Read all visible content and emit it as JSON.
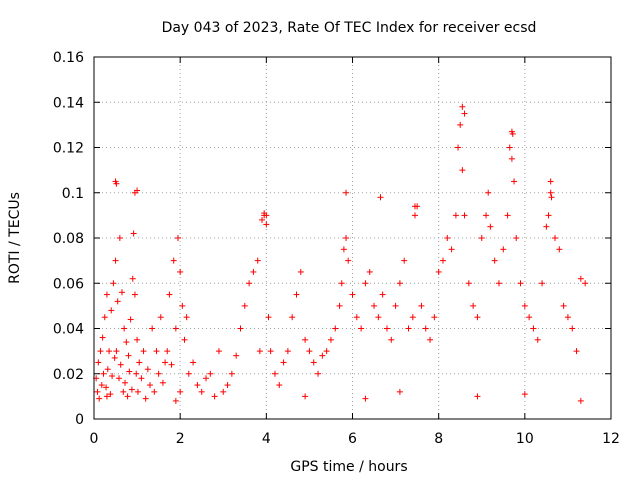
{
  "chart_data": {
    "type": "scatter",
    "title": "Day 043 of 2023, Rate Of TEC Index for receiver ecsd",
    "xlabel": "GPS time / hours",
    "ylabel": "ROTI / TECUs",
    "xlim": [
      0,
      12
    ],
    "ylim": [
      0,
      0.16
    ],
    "xticks": [
      "0",
      "2",
      "4",
      "6",
      "8",
      "10",
      "12"
    ],
    "yticks": [
      "0",
      "0.02",
      "0.04",
      "0.06",
      "0.08",
      "0.1",
      "0.12",
      "0.14",
      "0.16"
    ],
    "grid": true,
    "marker": "+",
    "color": "#ff0000",
    "series": [
      {
        "x": [
          0.05,
          0.08,
          0.1,
          0.12,
          0.15,
          0.18,
          0.2,
          0.22,
          0.25,
          0.28,
          0.3,
          0.32,
          0.35,
          0.38,
          0.4,
          0.42,
          0.45,
          0.48,
          0.5,
          0.52,
          0.55,
          0.58,
          0.6,
          0.62,
          0.65,
          0.68,
          0.7,
          0.72,
          0.75,
          0.78,
          0.8,
          0.82,
          0.85,
          0.88,
          0.9,
          0.92,
          0.95,
          0.98,
          1.0,
          1.02,
          1.05,
          1.1,
          1.15,
          1.2,
          1.25,
          1.3,
          1.35,
          1.4,
          1.45,
          1.5,
          1.55,
          1.6,
          1.65,
          1.7,
          1.75,
          1.8,
          1.85,
          1.9,
          1.95,
          2.0,
          2.05,
          2.1,
          2.15,
          2.2,
          2.3,
          2.4,
          2.5,
          2.6,
          2.7,
          2.8,
          2.9,
          3.0,
          3.1,
          3.2,
          3.3,
          3.4,
          3.5,
          3.6,
          3.7,
          3.8,
          3.85,
          3.9,
          3.95,
          4.0,
          4.05,
          4.1,
          4.2,
          4.3,
          4.4,
          4.5,
          4.6,
          4.7,
          4.8,
          4.9,
          5.0,
          5.1,
          5.2,
          5.3,
          5.4,
          5.5,
          5.6,
          5.7,
          5.75,
          5.8,
          5.85,
          5.9,
          6.0,
          6.1,
          6.2,
          6.3,
          6.4,
          6.5,
          6.6,
          6.7,
          6.8,
          6.9,
          7.0,
          7.1,
          7.2,
          7.3,
          7.4,
          7.45,
          7.5,
          7.6,
          7.7,
          7.8,
          7.9,
          8.0,
          8.1,
          8.2,
          8.3,
          8.4,
          8.45,
          8.5,
          8.55,
          8.6,
          8.7,
          8.8,
          8.9,
          9.0,
          9.1,
          9.15,
          9.2,
          9.3,
          9.4,
          9.5,
          9.6,
          9.65,
          9.7,
          9.75,
          9.8,
          9.9,
          10.0,
          10.1,
          10.2,
          10.3,
          10.4,
          10.5,
          10.55,
          10.6,
          10.7,
          10.8,
          10.9,
          11.0,
          11.1,
          11.2,
          11.3,
          11.4,
          0.5,
          0.52,
          0.95,
          1.0,
          3.95,
          4.0,
          8.55,
          8.6,
          9.7,
          9.72,
          5.85,
          6.65,
          7.45,
          10.6,
          10.62,
          0.3,
          1.9,
          2.0,
          4.9,
          6.3,
          7.1,
          8.9,
          10.0,
          11.3
        ],
        "y": [
          0.018,
          0.012,
          0.025,
          0.009,
          0.03,
          0.015,
          0.036,
          0.02,
          0.045,
          0.014,
          0.055,
          0.022,
          0.03,
          0.011,
          0.048,
          0.019,
          0.06,
          0.027,
          0.07,
          0.03,
          0.052,
          0.018,
          0.08,
          0.024,
          0.056,
          0.012,
          0.04,
          0.016,
          0.034,
          0.01,
          0.028,
          0.021,
          0.044,
          0.013,
          0.062,
          0.082,
          0.055,
          0.02,
          0.035,
          0.012,
          0.025,
          0.018,
          0.03,
          0.009,
          0.022,
          0.015,
          0.04,
          0.012,
          0.03,
          0.02,
          0.045,
          0.016,
          0.025,
          0.03,
          0.055,
          0.024,
          0.07,
          0.04,
          0.08,
          0.065,
          0.05,
          0.035,
          0.045,
          0.02,
          0.025,
          0.015,
          0.012,
          0.018,
          0.02,
          0.01,
          0.03,
          0.012,
          0.015,
          0.02,
          0.028,
          0.04,
          0.05,
          0.06,
          0.065,
          0.07,
          0.03,
          0.088,
          0.09,
          0.086,
          0.045,
          0.03,
          0.02,
          0.015,
          0.025,
          0.03,
          0.045,
          0.055,
          0.065,
          0.035,
          0.03,
          0.025,
          0.02,
          0.028,
          0.03,
          0.035,
          0.04,
          0.05,
          0.06,
          0.075,
          0.08,
          0.07,
          0.055,
          0.045,
          0.04,
          0.06,
          0.065,
          0.05,
          0.045,
          0.055,
          0.04,
          0.035,
          0.05,
          0.06,
          0.07,
          0.04,
          0.045,
          0.09,
          0.094,
          0.05,
          0.04,
          0.035,
          0.045,
          0.065,
          0.07,
          0.08,
          0.075,
          0.09,
          0.12,
          0.13,
          0.11,
          0.09,
          0.06,
          0.05,
          0.045,
          0.08,
          0.09,
          0.1,
          0.085,
          0.07,
          0.06,
          0.075,
          0.09,
          0.12,
          0.115,
          0.105,
          0.08,
          0.06,
          0.05,
          0.045,
          0.04,
          0.035,
          0.06,
          0.085,
          0.09,
          0.1,
          0.08,
          0.075,
          0.05,
          0.045,
          0.04,
          0.03,
          0.062,
          0.06,
          0.105,
          0.104,
          0.1,
          0.101,
          0.091,
          0.09,
          0.138,
          0.135,
          0.127,
          0.126,
          0.1,
          0.098,
          0.094,
          0.105,
          0.098,
          0.01,
          0.008,
          0.012,
          0.01,
          0.009,
          0.012,
          0.01,
          0.011,
          0.008
        ]
      }
    ]
  }
}
